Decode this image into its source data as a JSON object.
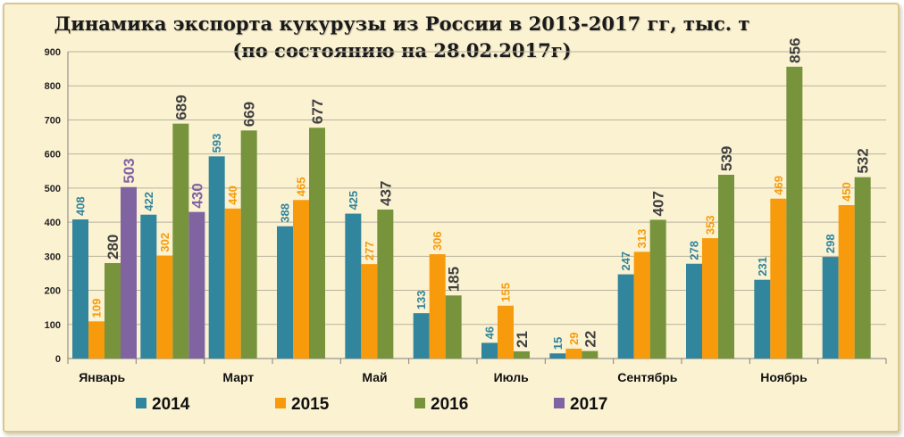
{
  "chart_data": {
    "type": "bar",
    "title": "Динамика экспорта кукурузы из России в 2013-2017 гг, тыс. т",
    "subtitle": "(по состоянию на 28.02.2017г)",
    "ylim": [
      0,
      900
    ],
    "yticks": [
      0,
      100,
      200,
      300,
      400,
      500,
      600,
      700,
      800,
      900
    ],
    "grid": true,
    "legend_position": "bottom",
    "categories": [
      "Январь",
      "",
      "Март",
      "",
      "Май",
      "",
      "Июль",
      "",
      "Сентябрь",
      "",
      "Ноябрь",
      ""
    ],
    "series": [
      {
        "name": "2014",
        "color": "#31859c",
        "values": [
          408,
          422,
          593,
          388,
          425,
          133,
          46,
          15,
          247,
          278,
          231,
          298
        ]
      },
      {
        "name": "2015",
        "color": "#f79b0c",
        "values": [
          109,
          302,
          440,
          465,
          277,
          306,
          155,
          29,
          313,
          353,
          469,
          450
        ]
      },
      {
        "name": "2016",
        "color": "#77933c",
        "values": [
          280,
          689,
          669,
          677,
          437,
          185,
          21,
          22,
          407,
          539,
          856,
          532
        ]
      },
      {
        "name": "2017",
        "color": "#8064a2",
        "values": [
          503,
          430,
          null,
          null,
          null,
          null,
          null,
          null,
          null,
          null,
          null,
          null
        ]
      }
    ]
  }
}
